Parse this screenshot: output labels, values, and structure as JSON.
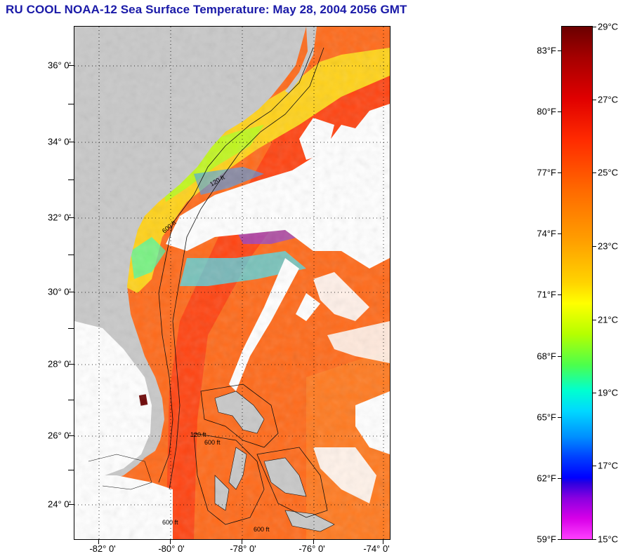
{
  "title": "RU COOL  NOAA-12  Sea Surface Temperature:  May 28, 2004 2056 GMT",
  "map": {
    "latitude_labels": [
      "36° 0'",
      "34° 0'",
      "32° 0'",
      "30° 0'",
      "28° 0'",
      "26° 0'",
      "24° 0'"
    ],
    "longitude_labels": [
      "-82° 0'",
      "-80° 0'",
      "-78° 0'",
      "-76° 0'",
      "-74° 0'"
    ],
    "contour_labels": [
      "120 ft",
      "600 ft",
      "120 ft",
      "600 ft",
      "600 ft",
      "600 ft"
    ],
    "colors": {
      "land": "#c8c8c8",
      "cloud": "#ffffff",
      "warm_water": "#ff6a1a",
      "gulf_stream": "#ff3a10",
      "cool_shelf": "#ffe020"
    }
  },
  "colorbar": {
    "fahrenheit_labels": [
      "83°F",
      "80°F",
      "77°F",
      "74°F",
      "71°F",
      "68°F",
      "65°F",
      "62°F",
      "59°F"
    ],
    "celsius_labels": [
      "29°C",
      "27°C",
      "25°C",
      "23°C",
      "21°C",
      "19°C",
      "17°C",
      "15°C"
    ]
  }
}
